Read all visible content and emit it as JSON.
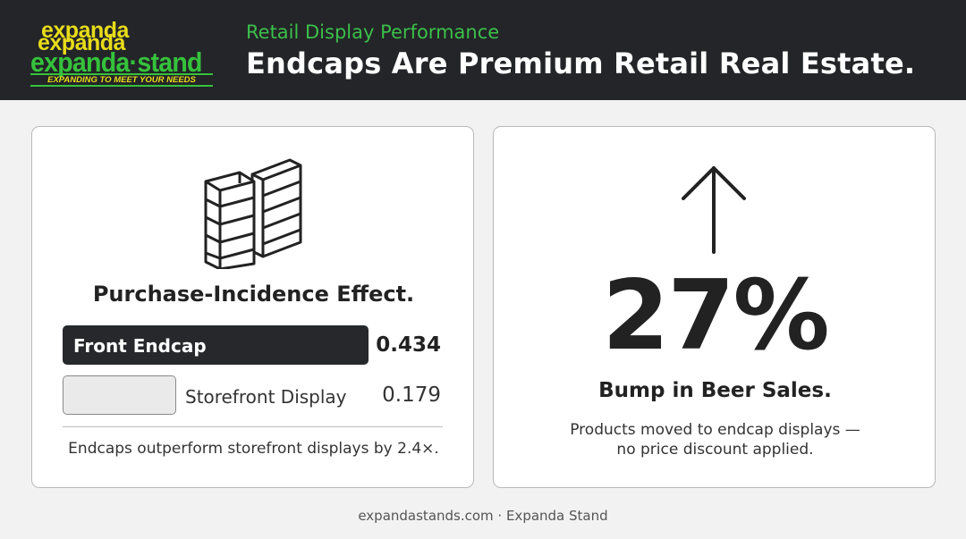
{
  "header": {
    "logo": {
      "word_line_1": "expanda",
      "word_line_2": "expanda",
      "word_line_3": "expanda·stand",
      "tagline": "EXPANDING TO MEET YOUR NEEDS"
    },
    "eyebrow": "Retail Display Performance",
    "title": "Endcaps Are Premium Retail Real Estate."
  },
  "left_card": {
    "icon": "retail-shelving-icon"
  },
  "chart_data": {
    "type": "bar",
    "orientation": "horizontal",
    "title": "Purchase-Incidence Effect.",
    "categories": [
      "Front Endcap",
      "Storefront Display"
    ],
    "values": [
      0.434,
      0.179
    ],
    "value_labels": [
      "0.434",
      "0.179"
    ],
    "colors": [
      "#26282b",
      "#eaeaea"
    ],
    "footnote": "Endcaps outperform storefront displays by 2.4×."
  },
  "right_card": {
    "icon": "arrow-up-icon",
    "stat": "27%",
    "stat_label": "Bump in Beer Sales.",
    "note_line_1": "Products moved to endcap displays —",
    "note_line_2": "no price discount applied."
  },
  "footer": {
    "text": "expandastands.com · Expanda Stand"
  },
  "colors": {
    "header_bg": "#232528",
    "accent_green": "#3cbf4a",
    "logo_yellow": "#e8dc1a"
  }
}
